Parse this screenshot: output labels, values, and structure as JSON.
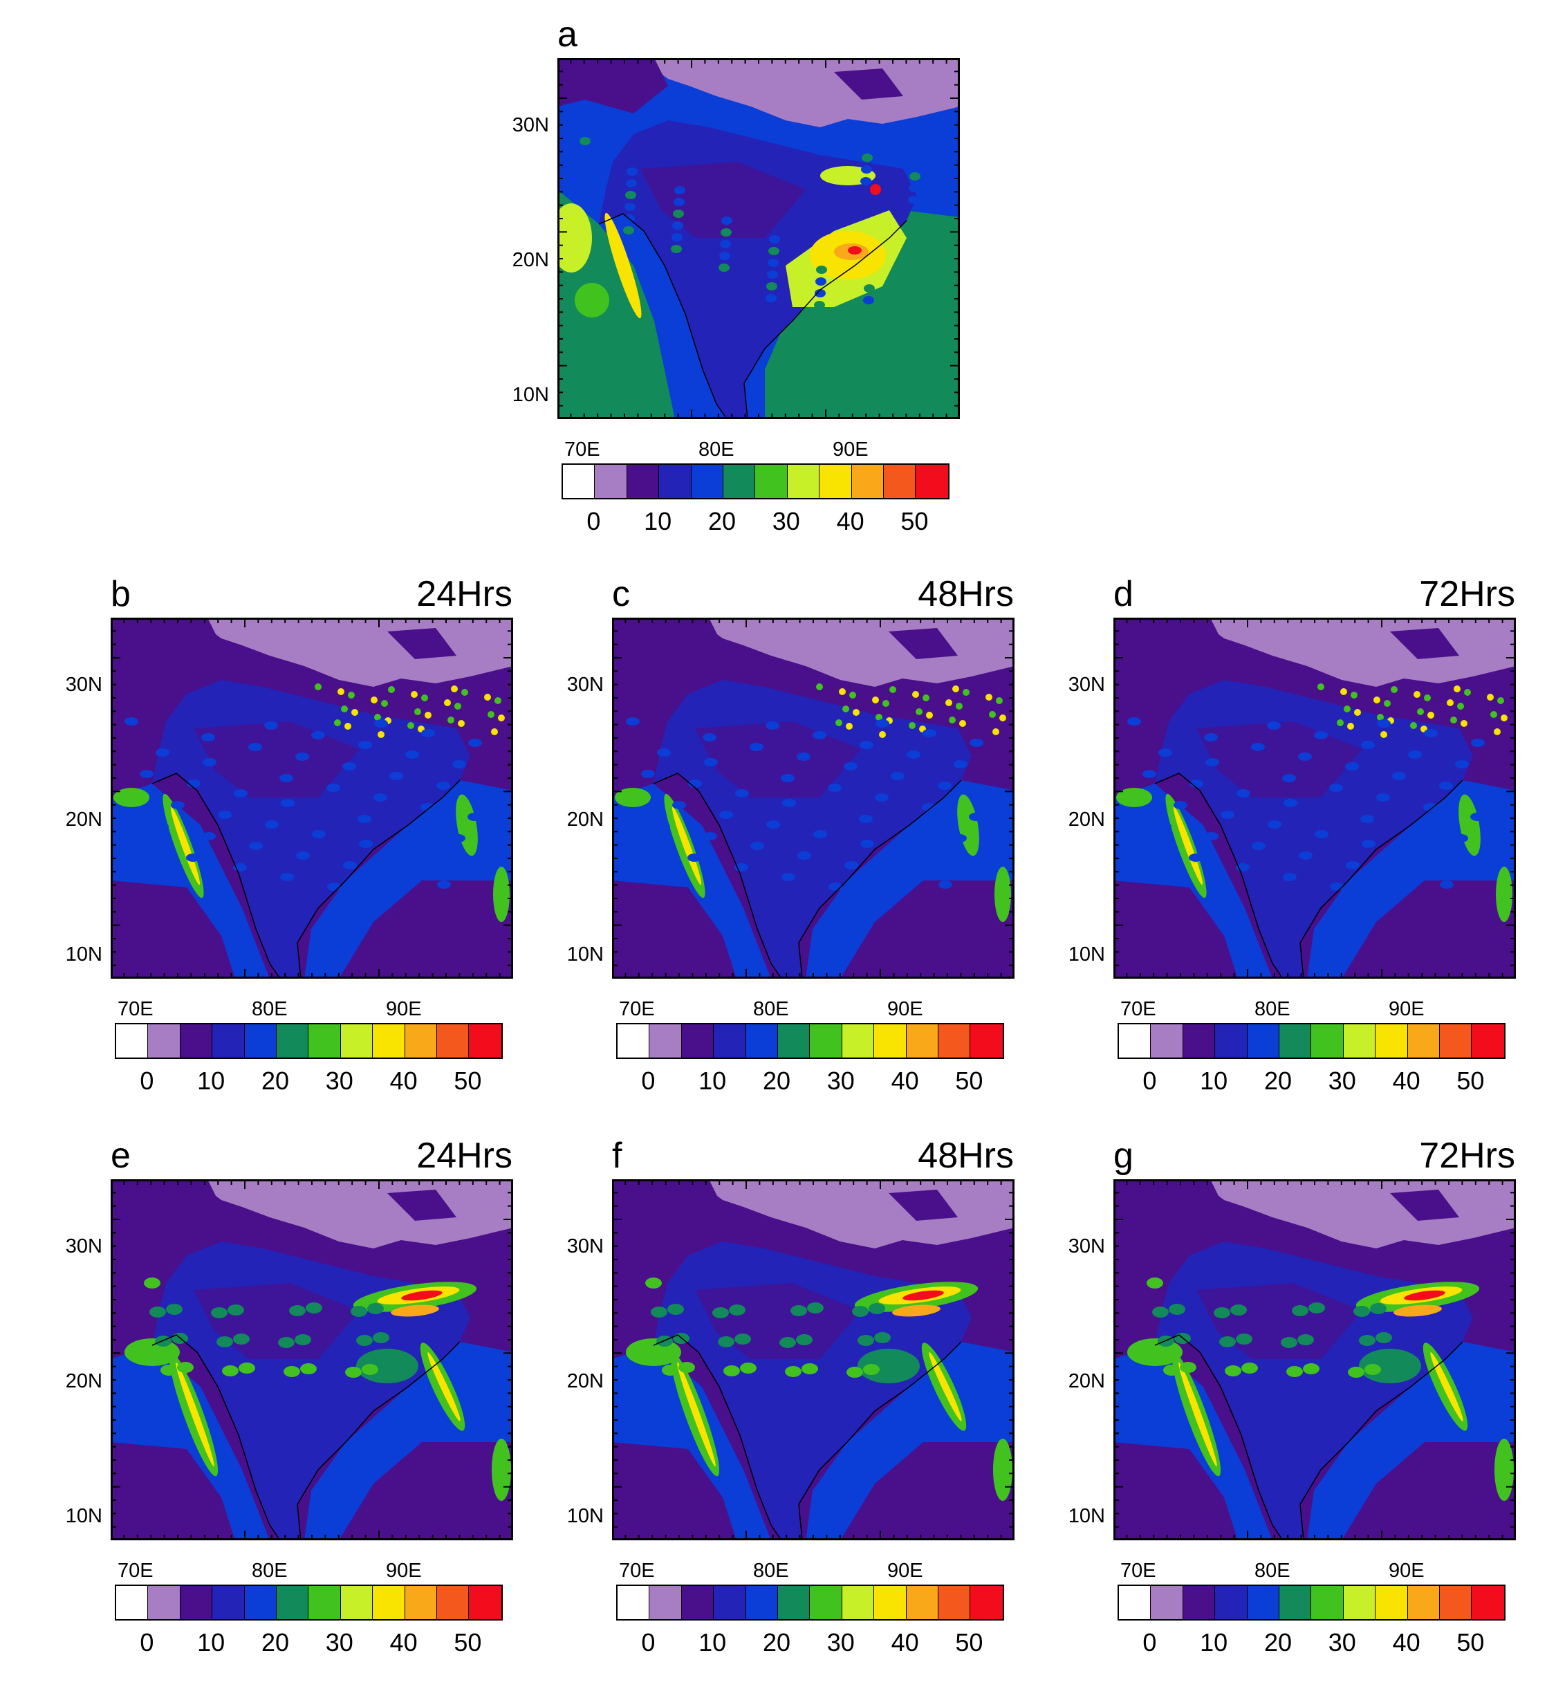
{
  "panels": [
    {
      "id": "a",
      "letter": "a",
      "time": "",
      "pattern": "obs"
    },
    {
      "id": "b",
      "letter": "b",
      "time": "24Hrs",
      "pattern": "model1"
    },
    {
      "id": "c",
      "letter": "c",
      "time": "48Hrs",
      "pattern": "model1"
    },
    {
      "id": "d",
      "letter": "d",
      "time": "72Hrs",
      "pattern": "model1"
    },
    {
      "id": "e",
      "letter": "e",
      "time": "24Hrs",
      "pattern": "model2"
    },
    {
      "id": "f",
      "letter": "f",
      "time": "48Hrs",
      "pattern": "model2"
    },
    {
      "id": "g",
      "letter": "g",
      "time": "72Hrs",
      "pattern": "model2"
    }
  ],
  "axes": {
    "lat_labels": [
      "30N",
      "20N",
      "10N"
    ],
    "lon_labels": [
      "70E",
      "80E",
      "90E"
    ]
  },
  "colorbar": {
    "colors": [
      "#ffffff",
      "#a77ec4",
      "#4a0f8a",
      "#2323b8",
      "#0b3ed6",
      "#128a5a",
      "#41c21e",
      "#c8f028",
      "#f8e400",
      "#f8a818",
      "#f4581c",
      "#f20c1c"
    ],
    "labels": [
      "0",
      "10",
      "20",
      "30",
      "40",
      "50"
    ]
  },
  "map_colors": {
    "land_high": "#a77ec4",
    "low": "#4a0f8a",
    "mid": "#2323b8",
    "blue": "#0b3ed6",
    "green": "#128a5a",
    "lgreen": "#41c21e",
    "ygreen": "#c8f028",
    "yellow": "#f8e400",
    "orange": "#f8a818",
    "red": "#f20c1c"
  }
}
